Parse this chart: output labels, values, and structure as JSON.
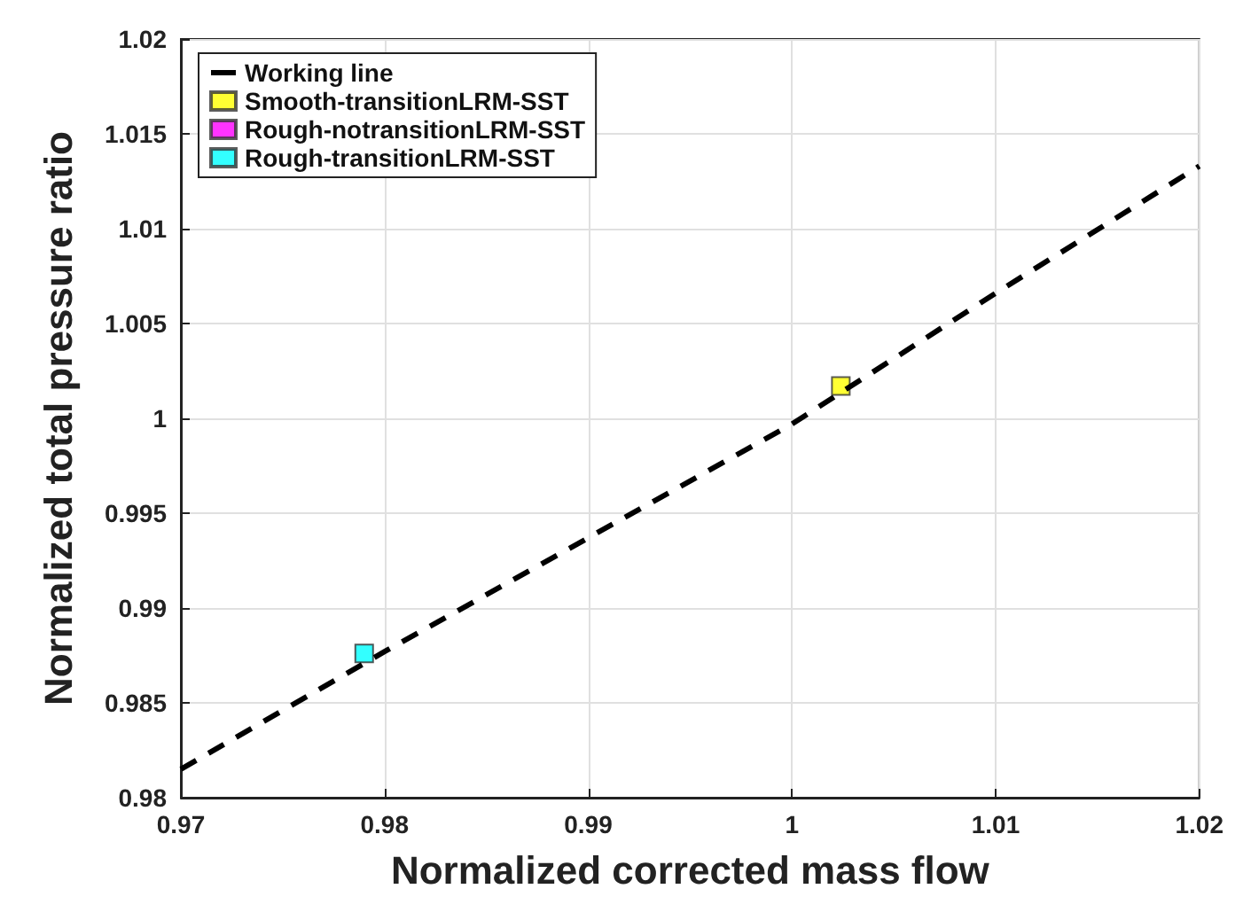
{
  "chart_data": {
    "type": "scatter",
    "xlabel": "Normalized corrected mass flow",
    "ylabel": "Normalized total pressure ratio",
    "xlim": [
      0.97,
      1.02
    ],
    "ylim": [
      0.98,
      1.02
    ],
    "xticks": [
      0.97,
      0.98,
      0.99,
      1,
      1.01,
      1.02
    ],
    "yticks": [
      0.98,
      0.985,
      0.99,
      0.995,
      1,
      1.005,
      1.01,
      1.015,
      1.02
    ],
    "grid": true,
    "legend": "top left",
    "marker": "square",
    "series": [
      {
        "name": "Working line",
        "type": "line",
        "line_style": "dashed",
        "marker": "none",
        "color": "#000000",
        "x": [
          0.97,
          0.98,
          0.99,
          1,
          1.01,
          1.02
        ],
        "values": [
          0.9815,
          0.9877,
          0.9937,
          0.9997,
          1.0066,
          1.0133
        ]
      },
      {
        "name": "Smooth-transitionLRM-SST",
        "color": "#ffff00",
        "x": [
          1.0024
        ],
        "values": [
          1.0017
        ]
      },
      {
        "name": "Rough-notransitionLRM-SST",
        "color": "#ff00ff"
      },
      {
        "name": "Rough-transitionLRM-SST",
        "color": "#00ffff",
        "x": [
          0.979
        ],
        "values": [
          0.9876
        ]
      }
    ]
  }
}
